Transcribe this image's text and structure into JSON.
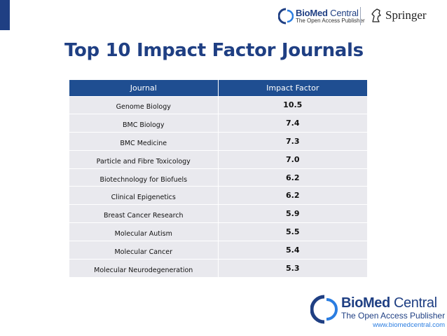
{
  "header": {
    "bmc_name_bold": "BioMed",
    "bmc_name_light": " Central",
    "bmc_tagline": "The Open Access Publisher",
    "springer_name": "Springer"
  },
  "title": "Top 10 Impact Factor Journals",
  "table": {
    "columns": [
      "Journal",
      "Impact Factor"
    ],
    "rows": [
      {
        "journal": "Genome Biology",
        "impact": "10.5"
      },
      {
        "journal": "BMC Biology",
        "impact": "7.4"
      },
      {
        "journal": "BMC Medicine",
        "impact": "7.3"
      },
      {
        "journal": "Particle and Fibre Toxicology",
        "impact": "7.0"
      },
      {
        "journal": "Biotechnology for Biofuels",
        "impact": "6.2"
      },
      {
        "journal": "Clinical Epigenetics",
        "impact": "6.2"
      },
      {
        "journal": "Breast Cancer Research",
        "impact": "5.9"
      },
      {
        "journal": "Molecular Autism",
        "impact": "5.5"
      },
      {
        "journal": "Molecular Cancer",
        "impact": "5.4"
      },
      {
        "journal": "Molecular Neurodegeneration",
        "impact": "5.3"
      }
    ]
  },
  "footer": {
    "bmc_name_bold": "BioMed",
    "bmc_name_light": " Central",
    "bmc_tagline": "The Open Access Publisher",
    "url": "www.biomedcentral.com"
  },
  "colors": {
    "brand_blue": "#1f3f83",
    "header_blue": "#1f4e91",
    "row_bg": "#e9e9ee",
    "link_blue": "#2a7de1"
  }
}
